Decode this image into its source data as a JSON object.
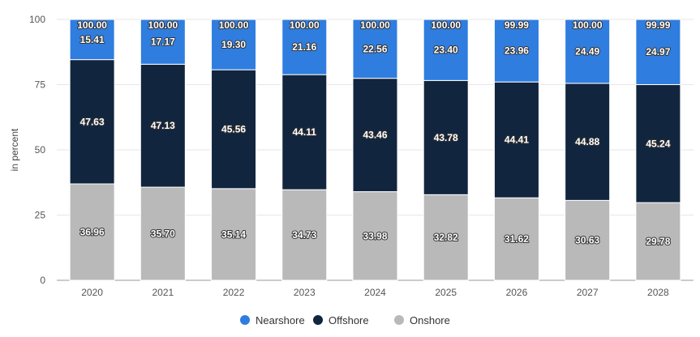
{
  "chart_data": {
    "type": "bar",
    "stacked": true,
    "title": "",
    "xlabel": "",
    "ylabel": "in percent",
    "ylim": [
      0,
      100
    ],
    "yticks": [
      0,
      25,
      50,
      75,
      100
    ],
    "grid": true,
    "legend_position": "bottom",
    "categories": [
      "2020",
      "2021",
      "2022",
      "2023",
      "2024",
      "2025",
      "2026",
      "2027",
      "2028"
    ],
    "totals": [
      "100.00",
      "100.00",
      "100.00",
      "100.00",
      "100.00",
      "100.00",
      "99.99",
      "100.00",
      "99.99"
    ],
    "series": [
      {
        "name": "Onshore",
        "color": "#b9b9b9",
        "values": [
          36.96,
          35.7,
          35.14,
          34.73,
          33.98,
          32.82,
          31.62,
          30.63,
          29.78
        ]
      },
      {
        "name": "Offshore",
        "color": "#12253f",
        "values": [
          47.63,
          47.13,
          45.56,
          44.11,
          43.46,
          43.78,
          44.41,
          44.88,
          45.24
        ]
      },
      {
        "name": "Nearshore",
        "color": "#2f7ddf",
        "values": [
          15.41,
          17.17,
          19.3,
          21.16,
          22.56,
          23.4,
          23.96,
          24.49,
          24.97
        ]
      }
    ],
    "legend_order": [
      "Nearshore",
      "Offshore",
      "Onshore"
    ]
  }
}
